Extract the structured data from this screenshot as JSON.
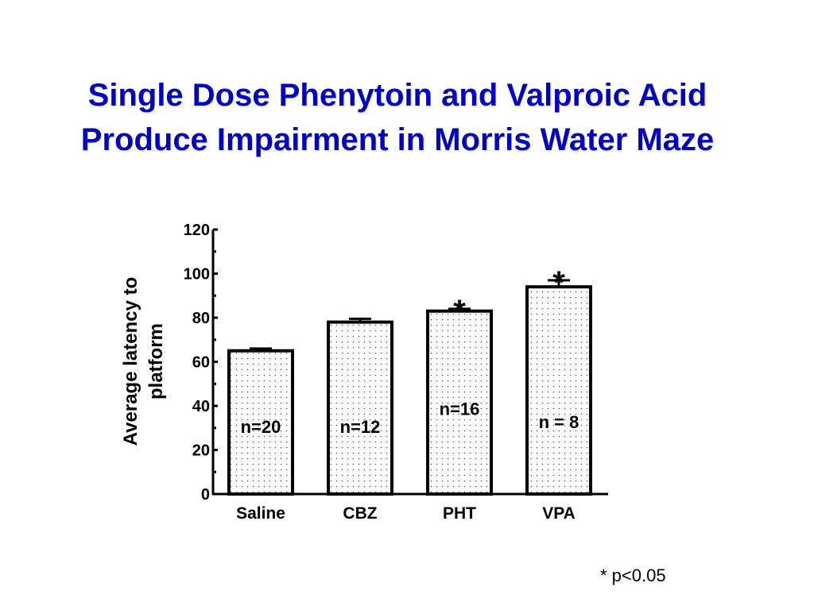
{
  "slide": {
    "title_line1": "Single Dose Phenytoin and Valproic Acid",
    "title_line2": "Produce Impairment in Morris Water Maze",
    "footnote": "* p<0.05",
    "title_color": "#0000cc"
  },
  "chart_data": {
    "type": "bar",
    "title": "",
    "xlabel": "",
    "ylabel_line1": "Average latency to",
    "ylabel_line2": "platform",
    "ylim": [
      0,
      120
    ],
    "yticks": [
      "0",
      "20",
      "40",
      "60",
      "80",
      "100",
      "120"
    ],
    "categories": [
      "Saline",
      "CBZ",
      "PHT",
      "VPA"
    ],
    "values": [
      65,
      78,
      83,
      94
    ],
    "errors": [
      1,
      1.5,
      1,
      3
    ],
    "n_labels": [
      "n=20",
      "n=12",
      "n=16",
      "n = 8"
    ],
    "significant": [
      false,
      false,
      true,
      true
    ],
    "significance_marker": "*",
    "fill": "dotted",
    "grid": false
  }
}
